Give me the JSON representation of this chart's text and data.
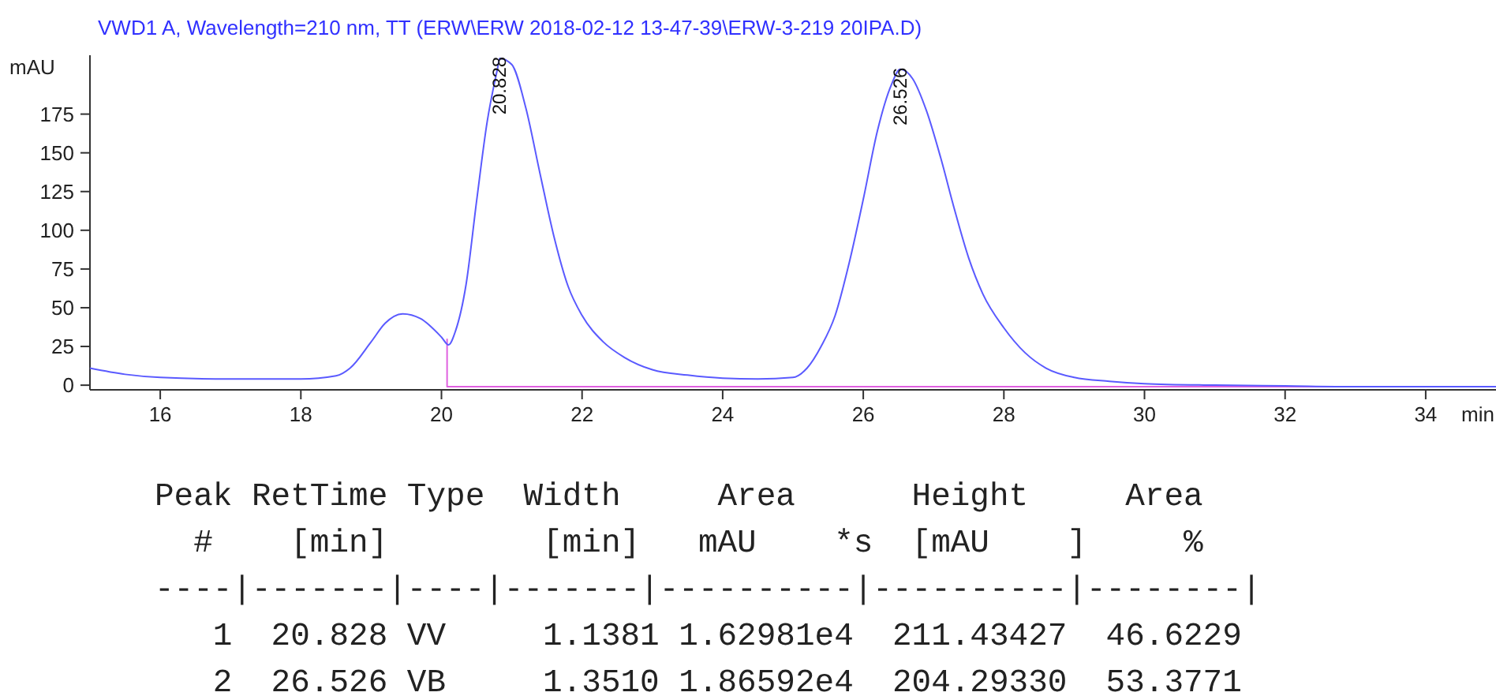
{
  "chart_data": {
    "type": "line",
    "title": "VWD1 A, Wavelength=210 nm, TT (ERW\\ERW 2018-02-12 13-47-39\\ERW-3-219 20IPA.D)",
    "xlabel": "min",
    "ylabel": "mAU",
    "xlim": [
      15,
      35
    ],
    "ylim": [
      -3,
      213
    ],
    "xticks": [
      16,
      18,
      20,
      22,
      24,
      26,
      28,
      30,
      32,
      34
    ],
    "yticks": [
      0,
      25,
      50,
      75,
      100,
      125,
      150,
      175
    ],
    "grid": false,
    "marker": "none",
    "line_style": "solid",
    "series": [
      {
        "color": "#e060e0",
        "x": [
          20.08,
          20.08,
          35
        ],
        "values": [
          30,
          -1,
          -1
        ]
      },
      {
        "color": "#5a5aff",
        "x": [
          15,
          15.5,
          16,
          17,
          18,
          18.5,
          18.7,
          19,
          19.2,
          19.45,
          19.7,
          20,
          20.1,
          20.2,
          20.35,
          20.5,
          20.65,
          20.8,
          20.828,
          21.0,
          21.2,
          21.4,
          21.6,
          21.8,
          22,
          22.3,
          22.6,
          23,
          23.5,
          24,
          24.5,
          25,
          25.2,
          25.4,
          25.6,
          25.8,
          26,
          26.2,
          26.4,
          26.526,
          26.7,
          26.9,
          27.1,
          27.3,
          27.5,
          27.7,
          28,
          28.3,
          28.6,
          29,
          29.5,
          30,
          31,
          32,
          33,
          34,
          35
        ],
        "values": [
          11,
          7,
          5,
          4,
          4,
          6,
          11,
          28,
          40,
          46,
          43,
          31,
          26,
          35,
          65,
          119,
          170,
          205,
          211,
          207,
          179,
          137,
          96,
          64,
          45,
          28,
          18,
          10,
          6.5,
          4.5,
          4,
          5,
          11,
          25,
          45,
          79,
          120,
          164,
          194,
          204,
          198,
          177,
          147,
          113,
          82,
          59,
          37,
          21,
          11,
          5,
          2.5,
          1,
          0,
          -0.5,
          -1,
          -1,
          -1
        ]
      }
    ],
    "annotations": [
      {
        "text": "20.828",
        "x": 20.828,
        "y": 211
      },
      {
        "text": "26.526",
        "x": 26.526,
        "y": 204
      },
      "Peak RetTime Type  Width     Area      Height     Area  ",
      "  #    [min]        [min]   mAU    *s  [mAU    ]     %   ",
      "----|-------|----|-------|----------|----------|--------|",
      "   1  20.828 VV     1.1381 1.62981e4  211.43427  46.6229",
      "   2  26.526 VB     1.3510 1.86592e4  204.29330  53.3771"
    ]
  }
}
